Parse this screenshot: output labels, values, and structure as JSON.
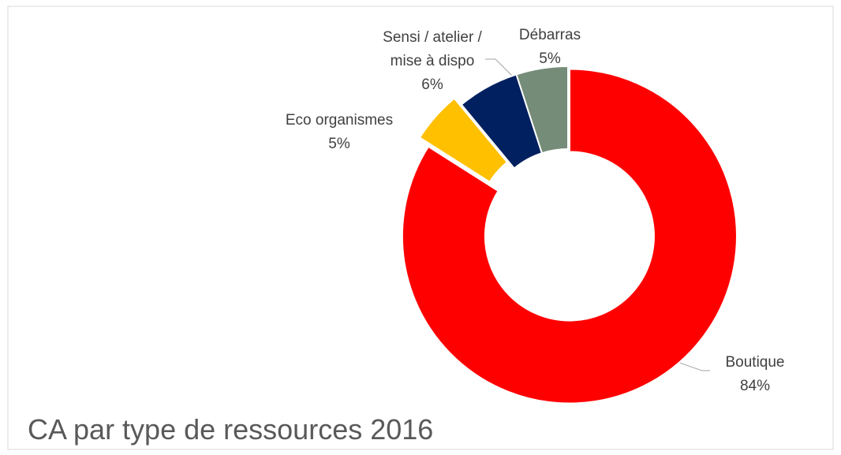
{
  "chart_data": {
    "type": "donut",
    "title": "CA par type de ressources 2016",
    "categories": [
      "Boutique",
      "Eco organismes",
      "Sensi / atelier / mise à dispo",
      "Débarras"
    ],
    "values": [
      84,
      5,
      6,
      5
    ],
    "value_labels": [
      "84%",
      "5%",
      "6%",
      "5%"
    ],
    "colors": [
      "#ff0000",
      "#ffc000",
      "#002060",
      "#758c78"
    ]
  }
}
